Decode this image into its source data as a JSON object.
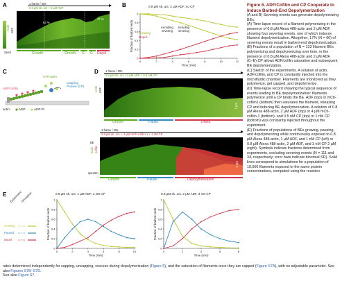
{
  "panels": {
    "A": {
      "label": "A",
      "header_line1": "1 frame / 30s",
      "header_line2": "0.8 µM sk. act + 2 µM ADF",
      "left_labels": [
        "Actin",
        "ADF"
      ],
      "seed_label": "Seed",
      "annotation_left": "83 %",
      "annotation_right": "17 %",
      "phases": [
        {
          "label": "Growth",
          "color": "#5ea81e"
        },
        {
          "label": "Growth",
          "color": "#5ea81e"
        },
        {
          "label": "G",
          "color": "#5ea81e"
        },
        {
          "label": "G",
          "color": "#5ea81e"
        },
        {
          "label": "Depol.",
          "color": "#d2364a"
        }
      ]
    },
    "B": {
      "label": "B",
      "title": "0.8 µM sk. act, 2 µM ADF, no CP",
      "legend_growing": "Growing",
      "legend_depol": "Depol.",
      "excluding_text": "excluding severing",
      "including_text": "including severing"
    },
    "C": {
      "label": "C",
      "atp_actin": "ATP-actin",
      "adf_cofilin": "ADF/cofilin",
      "capping_protein": "Capping Protein (CP)",
      "legend_actin": "actin:",
      "legend_adp": "ADP",
      "legend_adp_pi": "ADP-Pi"
    },
    "D": {
      "label": "D",
      "top": {
        "header_line1": "1 frame / 30s",
        "header_line2": "0.8 µM sk. act + 2 µM ADF + 0.5 nM CP",
        "left_labels": [
          "Actin",
          "ADF"
        ],
        "scale": "2 µm",
        "phases": [
          {
            "label": "Growth",
            "color": "#5ea81e"
          },
          {
            "label": "Pause",
            "color": "#2e8bc0"
          },
          {
            "label": "Depol.",
            "color": "#d2364a"
          }
        ]
      },
      "bottom": {
        "header_line1": "1 frame / 20s",
        "header_line2": "0.8 µM sk. act. + 4 µM mCh-cofilin-1 + 1 nM CP",
        "left_labels": [
          "BE",
          "actin",
          "cofilin",
          "spectrin"
        ],
        "scale": "2 µm",
        "phases": [
          {
            "label": "Growth",
            "color": "#5ea81e"
          },
          {
            "label": "Pause",
            "color": "#2e8bc0"
          },
          {
            "label": "Depolymerisation",
            "color": "#d2364a"
          }
        ]
      }
    },
    "E": {
      "label": "E",
      "legend_header_experiment": "Experiment",
      "legend_header_simulation": "Simulation",
      "legend_items": [
        {
          "label": "Growing",
          "color": "#b9c92a"
        },
        {
          "label": "Paused",
          "color": "#2e8bc0"
        },
        {
          "label": "Depol.",
          "color": "#d2364a"
        }
      ]
    }
  },
  "chart_data": [
    {
      "type": "line",
      "panel": "B",
      "title": "0.8 µM sk. act, 2 µM ADF, no CP",
      "xlabel": "Time (min)",
      "ylabel": "Fraction of barbed ends",
      "xlim": [
        0,
        12
      ],
      "ylim": [
        0,
        1
      ],
      "xticks": [
        0,
        2,
        4,
        6,
        8,
        10,
        12
      ],
      "yticks": [
        0,
        0.2,
        0.4,
        0.6,
        0.8,
        1
      ],
      "series": [
        {
          "name": "Growing",
          "color": "#b9c92a",
          "x": [
            0,
            1,
            2,
            3,
            4,
            5,
            6,
            7,
            8,
            9,
            10,
            11,
            12
          ],
          "values": [
            1.0,
            1.0,
            0.99,
            0.98,
            0.95,
            0.92,
            0.9,
            0.87,
            0.84,
            0.8,
            0.76,
            0.72,
            0.7
          ]
        },
        {
          "name": "Growing",
          "color": "#b9c92a",
          "x": [
            0,
            1,
            2,
            3,
            4,
            5,
            6,
            7,
            8,
            9,
            10,
            11,
            12
          ],
          "values": [
            1.0,
            0.98,
            0.95,
            0.9,
            0.85,
            0.8,
            0.74,
            0.68,
            0.62,
            0.56,
            0.5,
            0.45,
            0.42
          ]
        },
        {
          "name": "Depol.",
          "color": "#d2364a",
          "x": [
            0,
            1,
            2,
            3,
            4,
            5,
            6,
            7,
            8,
            9,
            10,
            11,
            12
          ],
          "values": [
            0,
            0,
            0.01,
            0.02,
            0.05,
            0.08,
            0.1,
            0.13,
            0.16,
            0.2,
            0.24,
            0.28,
            0.3
          ]
        },
        {
          "name": "Depol.",
          "color": "#d2364a",
          "x": [
            0,
            1,
            2,
            3,
            4,
            5,
            6,
            7,
            8,
            9,
            10,
            11,
            12
          ],
          "values": [
            0,
            0.02,
            0.05,
            0.1,
            0.15,
            0.2,
            0.26,
            0.32,
            0.38,
            0.44,
            0.5,
            0.55,
            0.58
          ]
        }
      ]
    },
    {
      "type": "line",
      "panel": "E-left",
      "title": "0.8 µM sk. act, 1 µM ADF, 1 nM CP",
      "xlabel": "Time (min)",
      "ylabel": "Fraction of barbed ends",
      "xlim": [
        0,
        10
      ],
      "ylim": [
        0,
        1
      ],
      "xticks": [
        0,
        2,
        4,
        6,
        8,
        10
      ],
      "yticks": [
        0,
        0.2,
        0.4,
        0.6,
        0.8,
        1
      ],
      "series": [
        {
          "name": "Growing",
          "color": "#b9c92a",
          "x": [
            0,
            1,
            2,
            3,
            4,
            5,
            6,
            7,
            8,
            9,
            10
          ],
          "values": [
            1.0,
            0.75,
            0.5,
            0.3,
            0.18,
            0.1,
            0.06,
            0.04,
            0.03,
            0.02,
            0.02
          ]
        },
        {
          "name": "Paused",
          "color": "#2e8bc0",
          "x": [
            0,
            1,
            2,
            3,
            4,
            5,
            6,
            7,
            8,
            9,
            10
          ],
          "values": [
            0,
            0.22,
            0.4,
            0.55,
            0.6,
            0.55,
            0.45,
            0.35,
            0.28,
            0.22,
            0.2
          ]
        },
        {
          "name": "Depol.",
          "color": "#d2364a",
          "x": [
            0,
            1,
            2,
            3,
            4,
            5,
            6,
            7,
            8,
            9,
            10
          ],
          "values": [
            0,
            0.02,
            0.08,
            0.15,
            0.22,
            0.35,
            0.48,
            0.58,
            0.66,
            0.72,
            0.75
          ]
        }
      ]
    },
    {
      "type": "line",
      "panel": "E-right",
      "title": "0.8 µM sk. act, 2 µM ADF, 3 nM CP",
      "xlabel": "Time (min)",
      "ylabel": "Fraction of barbed ends",
      "xlim": [
        0,
        8
      ],
      "ylim": [
        0,
        1
      ],
      "xticks": [
        0,
        2,
        4,
        6,
        8
      ],
      "yticks": [
        0,
        0.2,
        0.4,
        0.6,
        0.8,
        1
      ],
      "series": [
        {
          "name": "Growing",
          "color": "#b9c92a",
          "x": [
            0,
            1,
            2,
            3,
            4,
            5,
            6,
            7,
            8
          ],
          "values": [
            1.0,
            0.6,
            0.25,
            0.1,
            0.05,
            0.03,
            0.02,
            0.01,
            0.01
          ]
        },
        {
          "name": "Paused",
          "color": "#2e8bc0",
          "x": [
            0,
            1,
            2,
            3,
            4,
            5,
            6,
            7,
            8
          ],
          "values": [
            0,
            0.55,
            0.75,
            0.6,
            0.4,
            0.28,
            0.2,
            0.15,
            0.12
          ]
        },
        {
          "name": "Depol.",
          "color": "#d2364a",
          "x": [
            0,
            1,
            2,
            3,
            4,
            5,
            6,
            7,
            8
          ],
          "values": [
            0,
            0.05,
            0.2,
            0.4,
            0.55,
            0.65,
            0.72,
            0.78,
            0.8
          ]
        }
      ]
    }
  ],
  "caption": {
    "title": "Figure 6. ADF/Cofilin and CP Cooperate to Induce Barbed-End Depolymerization",
    "paragraphs": [
      "(A and B) Severing events can generate depolymerizing BEs.",
      "(A) Time-lapse record of a filament polymerizing in the presence of 0.8 µM Alexa 488-actin and 2 µM ADF, showing four severing events, one of which induces filament depolymerization. Altogether, 17% (N = 66) of severing events result in barbed-end depolymerization.",
      "(B) Fractions of a population of N = 133 filament BEs polymerizing and depolymerizing over time, in the presence of 0.8 µM Alexa 488-actin and 2 µM ADF.",
      "(C–E) CP allows ADF/cofilin saturation and subsequent BE depolymerization.",
      "(C) Sketch of the experiments. A solution of actin, ADF/cofilin, and CP is constantly injected into the microfluidic chamber. Filaments are monitored as they polymerize, get capped, and depolymerize.",
      "(D) Time-lapse record showing the typical sequence of events leading to BE depolymerization: filaments polymerize until a CP binds the BE. ADF (top) or mCh-cofilin1 (bottom) then saturates the filament, releasing CP and inducing BE depolymerization. A solution of 0.8 µM Alexa 488-actin, 2 µM ADF (top) or 4 µM mCh-cofilin-1 (bottom), and 0.5 nM CP (top) or 1 nM CP (bottom) was constantly injected throughout the experiment.",
      "(E) Fractions of populations of BEs growing, pausing, and depolymerizing while continuously exposed to 0.8 µM Alexa 488-actin, 1 µM ADF, and 1 nM CP (left) or 0.8 µM Alexa 488-actin, 2 µM ADF, and 3 nM CP 2 µM (right). Symbols indicate fractions determined from experiments, excluding severing events (N = 111 and 34, respectively; error bars indicate binomial SD). Solid lines correspond to simulations for a population of 10,000 filaments exposed to the same protein concentrations, computed using the reaction"
    ],
    "continuation_start": "rates determined independently for capping, uncapping, rescues during depolymerization (",
    "link_fig5": "Figure 5",
    "continuation_mid": "), and the saturation of filaments once they are capped (",
    "link_s7a": "Figure S7A",
    "continuation_end": "), with no adjustable parameter. See also ",
    "link_s7b": "Figures S7B–S7D",
    "see_also_prefix": "See also ",
    "link_s7": "Figure S7"
  }
}
